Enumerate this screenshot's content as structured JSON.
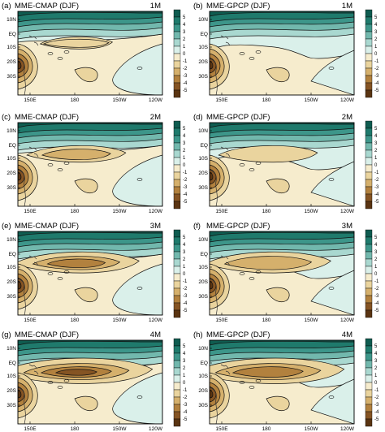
{
  "chart_data": {
    "type": "contour-map",
    "colorbar": {
      "labels": [
        "5",
        "4",
        "3",
        "2",
        "1",
        "0",
        "-1",
        "-2",
        "-3",
        "-4",
        "-5"
      ],
      "colors": [
        "#0f5c50",
        "#1f7a6c",
        "#3d968a",
        "#72b8ad",
        "#a9d8d0",
        "#daf0ea",
        "#f6eccd",
        "#ead49e",
        "#d5b06c",
        "#b2813e",
        "#855423",
        "#5a3412"
      ]
    },
    "x_ticks": [
      "150E",
      "180",
      "150W",
      "120W"
    ],
    "y_ticks": [
      "10N",
      "EQ",
      "10S",
      "20S",
      "30S"
    ],
    "panels": [
      {
        "tag": "(a)",
        "title": "MME-CMAP (DJF)",
        "lead": "1M",
        "dataset": "CMAP",
        "lead_months": 1
      },
      {
        "tag": "(b)",
        "title": "MME-GPCP (DJF)",
        "lead": "1M",
        "dataset": "GPCP",
        "lead_months": 1
      },
      {
        "tag": "(c)",
        "title": "MME-CMAP (DJF)",
        "lead": "2M",
        "dataset": "CMAP",
        "lead_months": 2
      },
      {
        "tag": "(d)",
        "title": "MME-GPCP (DJF)",
        "lead": "2M",
        "dataset": "GPCP",
        "lead_months": 2
      },
      {
        "tag": "(e)",
        "title": "MME-CMAP (DJF)",
        "lead": "3M",
        "dataset": "CMAP",
        "lead_months": 3
      },
      {
        "tag": "(f)",
        "title": "MME-GPCP (DJF)",
        "lead": "3M",
        "dataset": "GPCP",
        "lead_months": 3
      },
      {
        "tag": "(g)",
        "title": "MME-CMAP (DJF)",
        "lead": "4M",
        "dataset": "CMAP",
        "lead_months": 4
      },
      {
        "tag": "(h)",
        "title": "MME-GPCP (DJF)",
        "lead": "4M",
        "dataset": "GPCP",
        "lead_months": 4
      }
    ]
  }
}
